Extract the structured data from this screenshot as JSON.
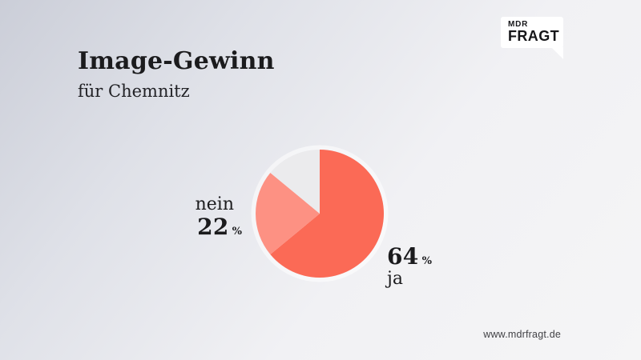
{
  "header": {
    "title": "Image-Gewinn",
    "subtitle": "für Chemnitz"
  },
  "logo": {
    "line1": "MDR",
    "line2": "FRAGT"
  },
  "footer": {
    "url": "www.mdrfragt.de"
  },
  "colors": {
    "slice_ja": "#fb6a56",
    "slice_nein": "#fd9183",
    "slice_rest": "#ebebed",
    "text": "#1d1d1f",
    "background_top_left": "#cbced8",
    "background_bottom_right": "#f5f5f6"
  },
  "chart_data": {
    "type": "pie",
    "title": "Image-Gewinn für Chemnitz",
    "unit": "%",
    "start_angle_deg": 0,
    "direction": "clockwise",
    "legend_position": "none",
    "slices": [
      {
        "label": "ja",
        "value": 64,
        "color": "#fb6a56",
        "labeled": true
      },
      {
        "label": "nein",
        "value": 22,
        "color": "#fd9183",
        "labeled": true
      },
      {
        "label": "",
        "value": 14,
        "color": "#ebebed",
        "labeled": false
      }
    ]
  }
}
